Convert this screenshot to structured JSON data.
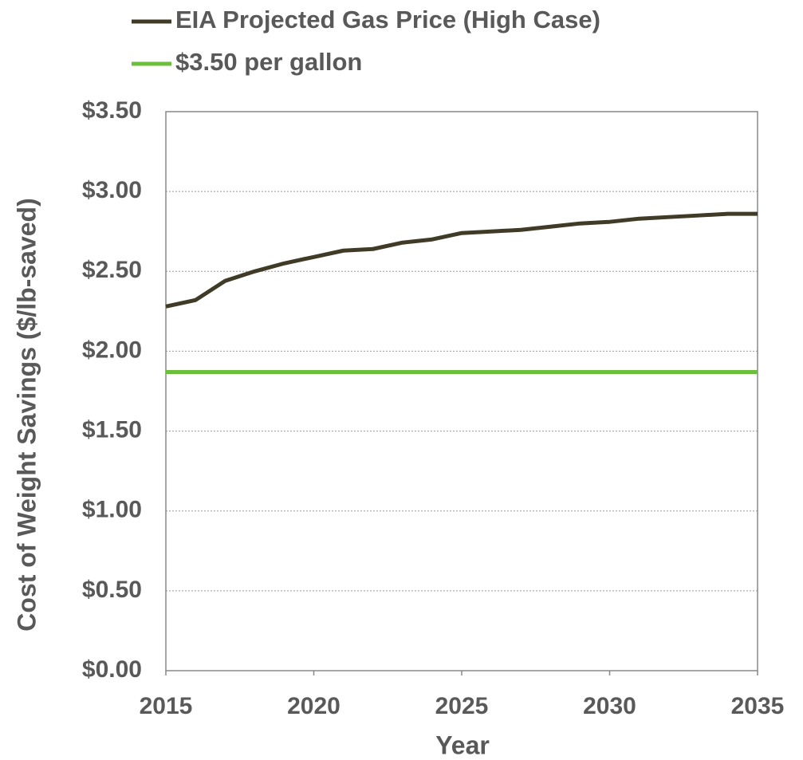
{
  "chart_data": {
    "type": "line",
    "xlabel": "Year",
    "ylabel": "Cost of Weight Savings ($/lb-saved)",
    "x": [
      2015,
      2016,
      2017,
      2018,
      2019,
      2020,
      2021,
      2022,
      2023,
      2024,
      2025,
      2026,
      2027,
      2028,
      2029,
      2030,
      2031,
      2032,
      2033,
      2034,
      2035
    ],
    "series": [
      {
        "name": "EIA Projected Gas Price (High Case)",
        "color": "#403b27",
        "values": [
          2.28,
          2.32,
          2.44,
          2.5,
          2.55,
          2.59,
          2.63,
          2.64,
          2.68,
          2.7,
          2.74,
          2.75,
          2.76,
          2.78,
          2.8,
          2.81,
          2.83,
          2.84,
          2.85,
          2.86,
          2.86
        ]
      },
      {
        "name": "$3.50 per gallon",
        "color": "#6cbf3c",
        "values": [
          1.87,
          1.87,
          1.87,
          1.87,
          1.87,
          1.87,
          1.87,
          1.87,
          1.87,
          1.87,
          1.87,
          1.87,
          1.87,
          1.87,
          1.87,
          1.87,
          1.87,
          1.87,
          1.87,
          1.87,
          1.87
        ]
      }
    ],
    "xlim": [
      2015,
      2035
    ],
    "xticks": [
      2015,
      2020,
      2025,
      2030,
      2035
    ],
    "ylim": [
      0,
      3.5
    ],
    "yticks": [
      {
        "value": 0,
        "label": "$0.00"
      },
      {
        "value": 0.5,
        "label": "$0.50"
      },
      {
        "value": 1,
        "label": "$1.00"
      },
      {
        "value": 1.5,
        "label": "$1.50"
      },
      {
        "value": 2,
        "label": "$2.00"
      },
      {
        "value": 2.5,
        "label": "$2.50"
      },
      {
        "value": 3,
        "label": "$3.00"
      },
      {
        "value": 3.5,
        "label": "$3.50"
      }
    ],
    "grid": true,
    "legend": "top"
  }
}
